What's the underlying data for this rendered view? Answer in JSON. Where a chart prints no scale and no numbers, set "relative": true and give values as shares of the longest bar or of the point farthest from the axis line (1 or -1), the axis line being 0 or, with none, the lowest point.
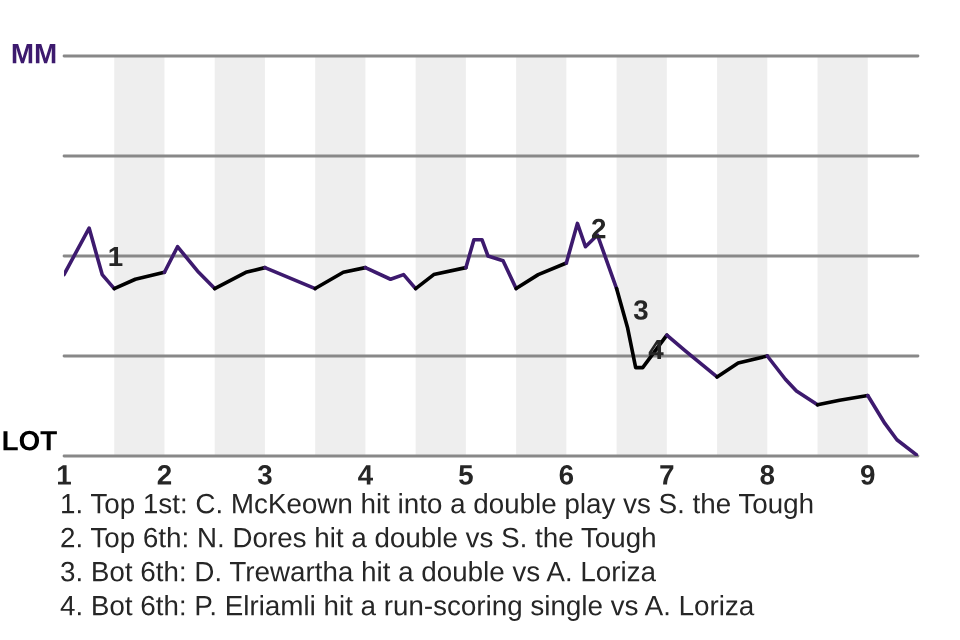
{
  "chart_data": {
    "type": "line",
    "relative": true,
    "xlim": [
      1,
      9.5
    ],
    "xticks": [
      1,
      2,
      3,
      4,
      5,
      6,
      7,
      8,
      9
    ],
    "ref_lines": [
      {
        "axis": "y",
        "value": 0,
        "label": "LOT",
        "color": "#888888"
      },
      {
        "axis": "y",
        "value": 0.43,
        "label": null,
        "color": "#888888"
      },
      {
        "axis": "y",
        "value": 0.86,
        "label": null,
        "color": "#888888"
      },
      {
        "axis": "y",
        "value": 1.29,
        "label": null,
        "color": "#888888"
      },
      {
        "axis": "y",
        "value": 1.72,
        "label": "MM",
        "color": "#888888"
      }
    ],
    "bands": [
      {
        "axis": "x",
        "from": 1.5,
        "to": 2,
        "color": "#eeeeee"
      },
      {
        "axis": "x",
        "from": 2.5,
        "to": 3,
        "color": "#eeeeee"
      },
      {
        "axis": "x",
        "from": 3.5,
        "to": 4,
        "color": "#eeeeee"
      },
      {
        "axis": "x",
        "from": 4.5,
        "to": 5,
        "color": "#eeeeee"
      },
      {
        "axis": "x",
        "from": 5.5,
        "to": 6,
        "color": "#eeeeee"
      },
      {
        "axis": "x",
        "from": 6.5,
        "to": 7,
        "color": "#eeeeee"
      },
      {
        "axis": "x",
        "from": 7.5,
        "to": 8,
        "color": "#eeeeee"
      },
      {
        "axis": "x",
        "from": 8.5,
        "to": 9,
        "color": "#eeeeee"
      }
    ],
    "series": [
      {
        "color": "#3d1a6e",
        "x": [
          1.0,
          1.25,
          1.38,
          1.5
        ],
        "values": [
          0.78,
          0.98,
          0.78,
          0.72
        ]
      },
      {
        "color": "#000000",
        "x": [
          1.5,
          1.71,
          2.0
        ],
        "values": [
          0.72,
          0.76,
          0.79
        ]
      },
      {
        "color": "#3d1a6e",
        "x": [
          2.0,
          2.13,
          2.34,
          2.5
        ],
        "values": [
          0.79,
          0.9,
          0.79,
          0.72
        ]
      },
      {
        "color": "#000000",
        "x": [
          2.5,
          2.81,
          3.0
        ],
        "values": [
          0.72,
          0.79,
          0.81
        ]
      },
      {
        "color": "#3d1a6e",
        "x": [
          3.0,
          3.5
        ],
        "values": [
          0.81,
          0.72
        ]
      },
      {
        "color": "#000000",
        "x": [
          3.5,
          3.78,
          4.0
        ],
        "values": [
          0.72,
          0.79,
          0.81
        ]
      },
      {
        "color": "#3d1a6e",
        "x": [
          4.0,
          4.25,
          4.38,
          4.5
        ],
        "values": [
          0.81,
          0.76,
          0.78,
          0.72
        ]
      },
      {
        "color": "#000000",
        "x": [
          4.5,
          4.68,
          5.0
        ],
        "values": [
          0.72,
          0.78,
          0.81
        ]
      },
      {
        "color": "#3d1a6e",
        "x": [
          5.0,
          5.08,
          5.16,
          5.22,
          5.37,
          5.5
        ],
        "values": [
          0.81,
          0.93,
          0.93,
          0.86,
          0.84,
          0.72
        ]
      },
      {
        "color": "#000000",
        "x": [
          5.5,
          5.72,
          6.0
        ],
        "values": [
          0.72,
          0.78,
          0.83
        ]
      },
      {
        "color": "#3d1a6e",
        "x": [
          6.0,
          6.11,
          6.19,
          6.31,
          6.5
        ],
        "values": [
          0.83,
          1,
          0.9,
          0.95,
          0.72
        ]
      },
      {
        "color": "#000000",
        "x": [
          6.5,
          6.61,
          6.69,
          6.76,
          7.0
        ],
        "values": [
          0.72,
          0.55,
          0.38,
          0.38,
          0.52
        ]
      },
      {
        "color": "#3d1a6e",
        "x": [
          7.0,
          7.19,
          7.5
        ],
        "values": [
          0.52,
          0.45,
          0.34
        ]
      },
      {
        "color": "#000000",
        "x": [
          7.5,
          7.71,
          8.0
        ],
        "values": [
          0.34,
          0.4,
          0.43
        ]
      },
      {
        "color": "#3d1a6e",
        "x": [
          8.0,
          8.18,
          8.29,
          8.5
        ],
        "values": [
          0.43,
          0.33,
          0.28,
          0.22
        ]
      },
      {
        "color": "#000000",
        "x": [
          8.5,
          8.72,
          9.0
        ],
        "values": [
          0.22,
          0.24,
          0.26
        ]
      },
      {
        "color": "#3d1a6e",
        "x": [
          9.0,
          9.17,
          9.29,
          9.5
        ],
        "values": [
          0.26,
          0.14,
          0.07,
          0
        ]
      }
    ],
    "annotations": [
      {
        "text": "1",
        "x": 1.38,
        "y": 0.78
      },
      {
        "text": "2",
        "x": 6.19,
        "y": 0.9
      },
      {
        "text": "3",
        "x": 6.61,
        "y": 0.55
      },
      {
        "text": "4",
        "x": 6.76,
        "y": 0.38
      },
      "1. Top 1st: C. McKeown hit into a double play vs S. the Tough",
      "2. Top 6th: N. Dores hit a double vs S. the Tough",
      "3. Bot 6th: D. Trewartha hit a double vs A. Loriza",
      "4. Bot 6th: P. Elriamli hit a run-scoring single vs A. Loriza"
    ]
  }
}
